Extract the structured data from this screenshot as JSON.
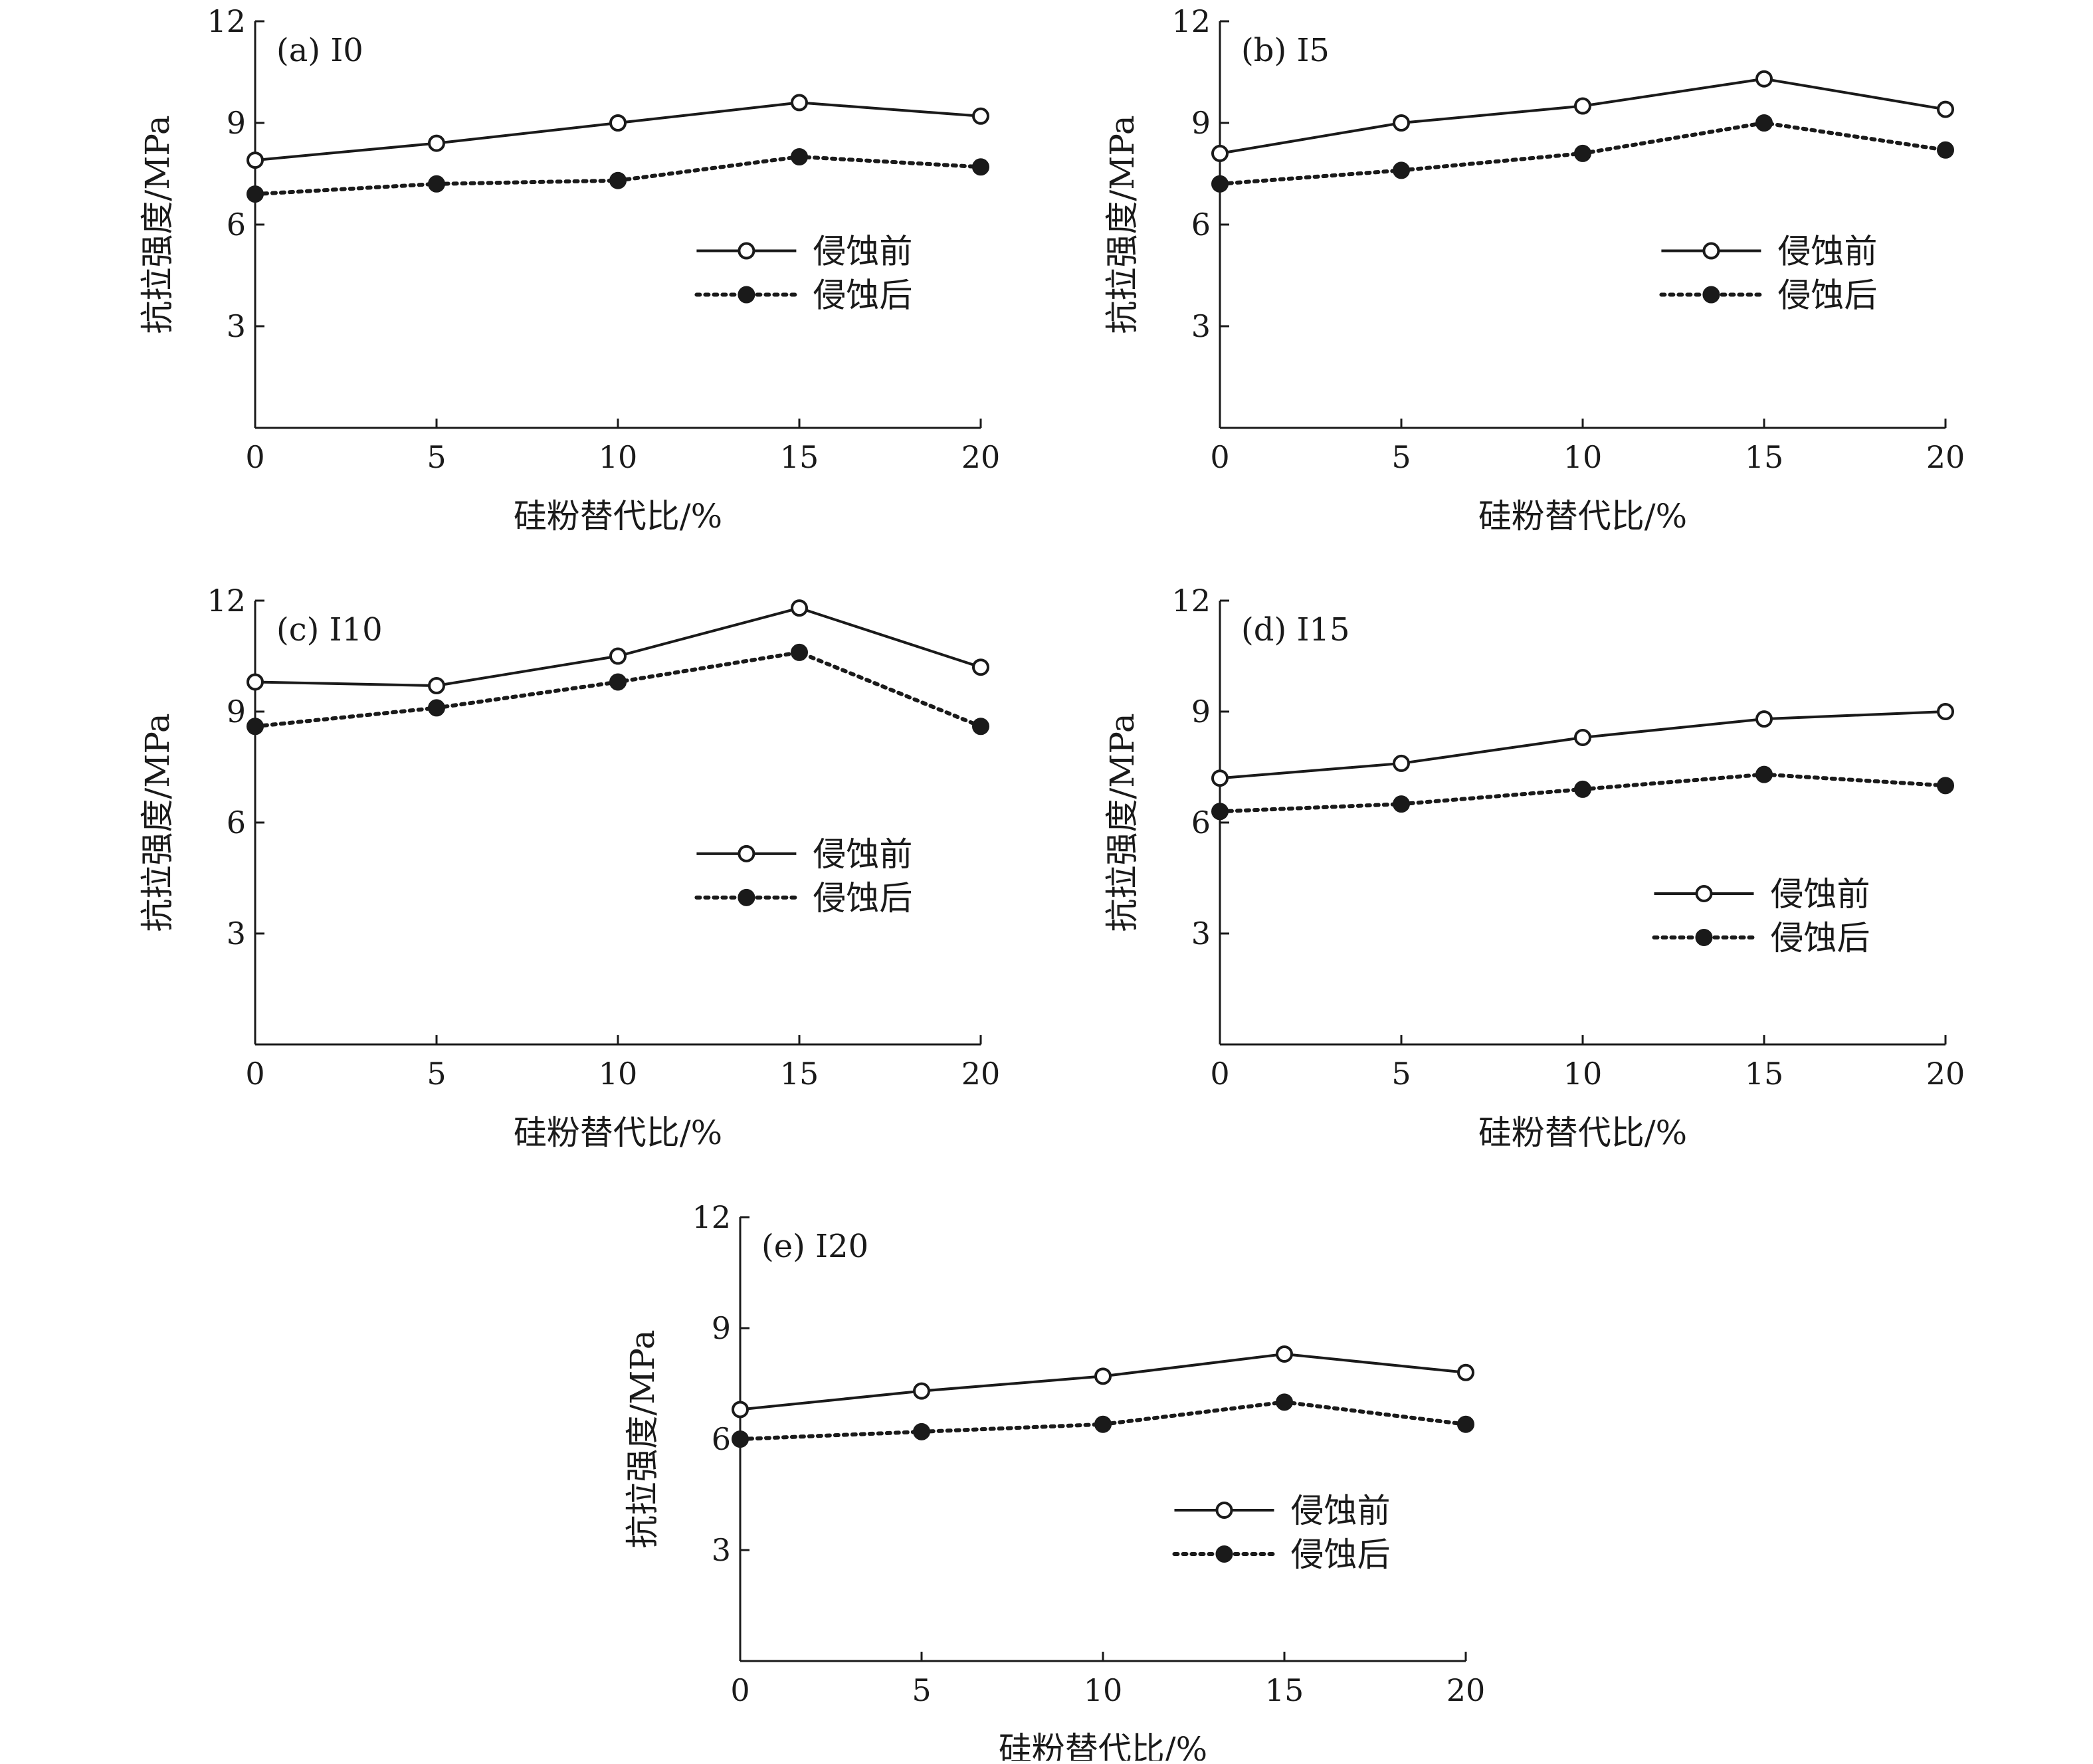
{
  "chart_data": [
    {
      "type": "line",
      "panel_label": "(a) I0",
      "xlabel": "硅粉替代比/%",
      "ylabel": "抗拉强度/MPa",
      "x": [
        0,
        5,
        10,
        15,
        20
      ],
      "xticks": [
        "0",
        "5",
        "10",
        "15",
        "20"
      ],
      "yticks": [
        "3",
        "6",
        "9",
        "12"
      ],
      "xlim": [
        0,
        20
      ],
      "ylim": [
        0,
        12
      ],
      "legend_position": "right-middle",
      "series": [
        {
          "name": "侵蚀前",
          "style": "solid-open-circle",
          "values": [
            7.9,
            8.4,
            9.0,
            9.6,
            9.2
          ]
        },
        {
          "name": "侵蚀后",
          "style": "dotted-filled-circle",
          "values": [
            6.9,
            7.2,
            7.3,
            8.0,
            7.7
          ]
        }
      ]
    },
    {
      "type": "line",
      "panel_label": "(b) I5",
      "xlabel": "硅粉替代比/%",
      "ylabel": "抗拉强度/MPa",
      "x": [
        0,
        5,
        10,
        15,
        20
      ],
      "xticks": [
        "0",
        "5",
        "10",
        "15",
        "20"
      ],
      "yticks": [
        "3",
        "6",
        "9",
        "12"
      ],
      "xlim": [
        0,
        20
      ],
      "ylim": [
        0,
        12
      ],
      "legend_position": "right-middle",
      "series": [
        {
          "name": "侵蚀前",
          "style": "solid-open-circle",
          "values": [
            8.1,
            9.0,
            9.5,
            10.3,
            9.4
          ]
        },
        {
          "name": "侵蚀后",
          "style": "dotted-filled-circle",
          "values": [
            7.2,
            7.6,
            8.1,
            9.0,
            8.2
          ]
        }
      ]
    },
    {
      "type": "line",
      "panel_label": "(c) I10",
      "xlabel": "硅粉替代比/%",
      "ylabel": "抗拉强度/MPa",
      "x": [
        0,
        5,
        10,
        15,
        20
      ],
      "xticks": [
        "0",
        "5",
        "10",
        "15",
        "20"
      ],
      "yticks": [
        "3",
        "6",
        "9",
        "12"
      ],
      "xlim": [
        0,
        20
      ],
      "ylim": [
        0,
        12
      ],
      "legend_position": "right-middle",
      "series": [
        {
          "name": "侵蚀前",
          "style": "solid-open-circle",
          "values": [
            9.8,
            9.7,
            10.5,
            11.8,
            10.2
          ]
        },
        {
          "name": "侵蚀后",
          "style": "dotted-filled-circle",
          "values": [
            8.6,
            9.1,
            9.8,
            10.6,
            8.6
          ]
        }
      ]
    },
    {
      "type": "line",
      "panel_label": "(d) I15",
      "xlabel": "硅粉替代比/%",
      "ylabel": "抗拉强度/MPa",
      "x": [
        0,
        5,
        10,
        15,
        20
      ],
      "xticks": [
        "0",
        "5",
        "10",
        "15",
        "20"
      ],
      "yticks": [
        "3",
        "6",
        "9",
        "12"
      ],
      "xlim": [
        0,
        20
      ],
      "ylim": [
        0,
        12
      ],
      "legend_position": "right-bottom",
      "series": [
        {
          "name": "侵蚀前",
          "style": "solid-open-circle",
          "values": [
            7.2,
            7.6,
            8.3,
            8.8,
            9.0
          ]
        },
        {
          "name": "侵蚀后",
          "style": "dotted-filled-circle",
          "values": [
            6.3,
            6.5,
            6.9,
            7.3,
            7.0
          ]
        }
      ]
    },
    {
      "type": "line",
      "panel_label": "(e) I20",
      "xlabel": "硅粉替代比/%",
      "ylabel": "抗拉强度/MPa",
      "x": [
        0,
        5,
        10,
        15,
        20
      ],
      "xticks": [
        "0",
        "5",
        "10",
        "15",
        "20"
      ],
      "yticks": [
        "3",
        "6",
        "9",
        "12"
      ],
      "xlim": [
        0,
        20
      ],
      "ylim": [
        0,
        12
      ],
      "legend_position": "right-bottom",
      "series": [
        {
          "name": "侵蚀前",
          "style": "solid-open-circle",
          "values": [
            6.8,
            7.3,
            7.7,
            8.3,
            7.8
          ]
        },
        {
          "name": "侵蚀后",
          "style": "dotted-filled-circle",
          "values": [
            6.0,
            6.2,
            6.4,
            7.0,
            6.4
          ]
        }
      ]
    }
  ]
}
